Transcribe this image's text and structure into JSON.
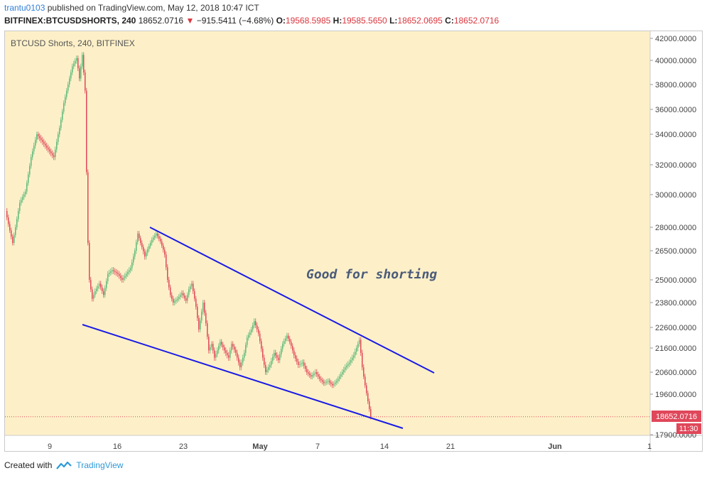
{
  "header": {
    "user": "trantu0103",
    "published_text": " published on TradingView.com, May 12, 2018 10:47 ICT",
    "symbol": "BITFINEX:BTCUSDSHORTS, 240",
    "last": "18652.0716",
    "change": "−915.5411 (−4.68%)",
    "o_label": "O:",
    "o_value": "19568.5985",
    "h_label": "H:",
    "h_value": "19585.5650",
    "l_label": "L:",
    "l_value": "18652.0695",
    "c_label": "C:",
    "c_value": "18652.0716"
  },
  "chart_label": "BTCUSD Shorts, 240, BITFINEX",
  "annotation": "Good for shorting",
  "price_tag": "18652.0716",
  "time_tag": "11:30",
  "footer": {
    "created_with": "Created with",
    "brand": "TradingView"
  },
  "colors": {
    "up": "#5cb87a",
    "down": "#e0475a",
    "trendline": "#1a1ae6",
    "chart_bg": "#fdf0c8"
  },
  "chart_data": {
    "type": "candlestick",
    "title": "BTCUSD Shorts, 240, BITFINEX",
    "ylim": [
      17400,
      42400
    ],
    "y_ticks": [
      "42000.0000",
      "40000.0000",
      "38000.0000",
      "36000.0000",
      "34000.0000",
      "32000.0000",
      "30000.0000",
      "28000.0000",
      "26500.0000",
      "25000.0000",
      "23800.0000",
      "22600.0000",
      "21600.0000",
      "20600.0000",
      "19600.0000",
      "17900.0000"
    ],
    "x_ticks": [
      "9",
      "16",
      "23",
      "May",
      "7",
      "14",
      "21",
      "Jun",
      "1"
    ],
    "last_price": 18652.0716,
    "close_path": [
      [
        0,
        29000
      ],
      [
        10,
        27000
      ],
      [
        20,
        29500
      ],
      [
        28,
        30200
      ],
      [
        36,
        32500
      ],
      [
        44,
        34000
      ],
      [
        52,
        33500
      ],
      [
        60,
        33000
      ],
      [
        68,
        32500
      ],
      [
        76,
        34500
      ],
      [
        82,
        36500
      ],
      [
        88,
        38000
      ],
      [
        94,
        39500
      ],
      [
        100,
        40200
      ],
      [
        104,
        38500
      ],
      [
        108,
        40500
      ],
      [
        112,
        37500
      ],
      [
        114,
        31500
      ],
      [
        116,
        27000
      ],
      [
        118,
        25000
      ],
      [
        122,
        24000
      ],
      [
        126,
        24400
      ],
      [
        132,
        24800
      ],
      [
        138,
        24200
      ],
      [
        144,
        25300
      ],
      [
        150,
        25500
      ],
      [
        158,
        25300
      ],
      [
        164,
        25000
      ],
      [
        170,
        25300
      ],
      [
        176,
        25600
      ],
      [
        182,
        26500
      ],
      [
        186,
        27600
      ],
      [
        190,
        27000
      ],
      [
        196,
        26200
      ],
      [
        200,
        26600
      ],
      [
        206,
        27200
      ],
      [
        212,
        27600
      ],
      [
        218,
        27100
      ],
      [
        224,
        26300
      ],
      [
        228,
        25000
      ],
      [
        232,
        24200
      ],
      [
        236,
        23800
      ],
      [
        242,
        24000
      ],
      [
        248,
        24300
      ],
      [
        254,
        23900
      ],
      [
        258,
        24500
      ],
      [
        262,
        24800
      ],
      [
        268,
        23600
      ],
      [
        272,
        22500
      ],
      [
        278,
        23800
      ],
      [
        282,
        22800
      ],
      [
        286,
        21500
      ],
      [
        290,
        21800
      ],
      [
        294,
        21200
      ],
      [
        298,
        21500
      ],
      [
        302,
        21900
      ],
      [
        308,
        21500
      ],
      [
        314,
        21200
      ],
      [
        318,
        21800
      ],
      [
        324,
        21400
      ],
      [
        330,
        20800
      ],
      [
        336,
        21400
      ],
      [
        340,
        22100
      ],
      [
        346,
        22500
      ],
      [
        350,
        22900
      ],
      [
        356,
        22300
      ],
      [
        362,
        21200
      ],
      [
        366,
        20600
      ],
      [
        372,
        20900
      ],
      [
        378,
        21400
      ],
      [
        384,
        21100
      ],
      [
        390,
        21800
      ],
      [
        396,
        22200
      ],
      [
        400,
        21900
      ],
      [
        406,
        21300
      ],
      [
        412,
        20900
      ],
      [
        418,
        21000
      ],
      [
        424,
        20600
      ],
      [
        430,
        20400
      ],
      [
        436,
        20600
      ],
      [
        442,
        20300
      ],
      [
        448,
        20100
      ],
      [
        454,
        20200
      ],
      [
        460,
        20000
      ],
      [
        466,
        20200
      ],
      [
        472,
        20500
      ],
      [
        478,
        20800
      ],
      [
        484,
        21000
      ],
      [
        490,
        21300
      ],
      [
        494,
        21600
      ],
      [
        498,
        22000
      ],
      [
        502,
        20800
      ],
      [
        506,
        20000
      ],
      [
        510,
        19300
      ],
      [
        514,
        18652
      ]
    ],
    "annotations": [
      {
        "type": "trendline",
        "label": "upper",
        "points": [
          [
            "2018-04-19",
            27900
          ],
          [
            "2018-05-20",
            20500
          ]
        ]
      },
      {
        "type": "trendline",
        "label": "lower",
        "points": [
          [
            "2018-04-13",
            22600
          ],
          [
            "2018-05-16",
            18200
          ]
        ]
      },
      {
        "type": "text",
        "text": "Good for shorting"
      }
    ]
  }
}
